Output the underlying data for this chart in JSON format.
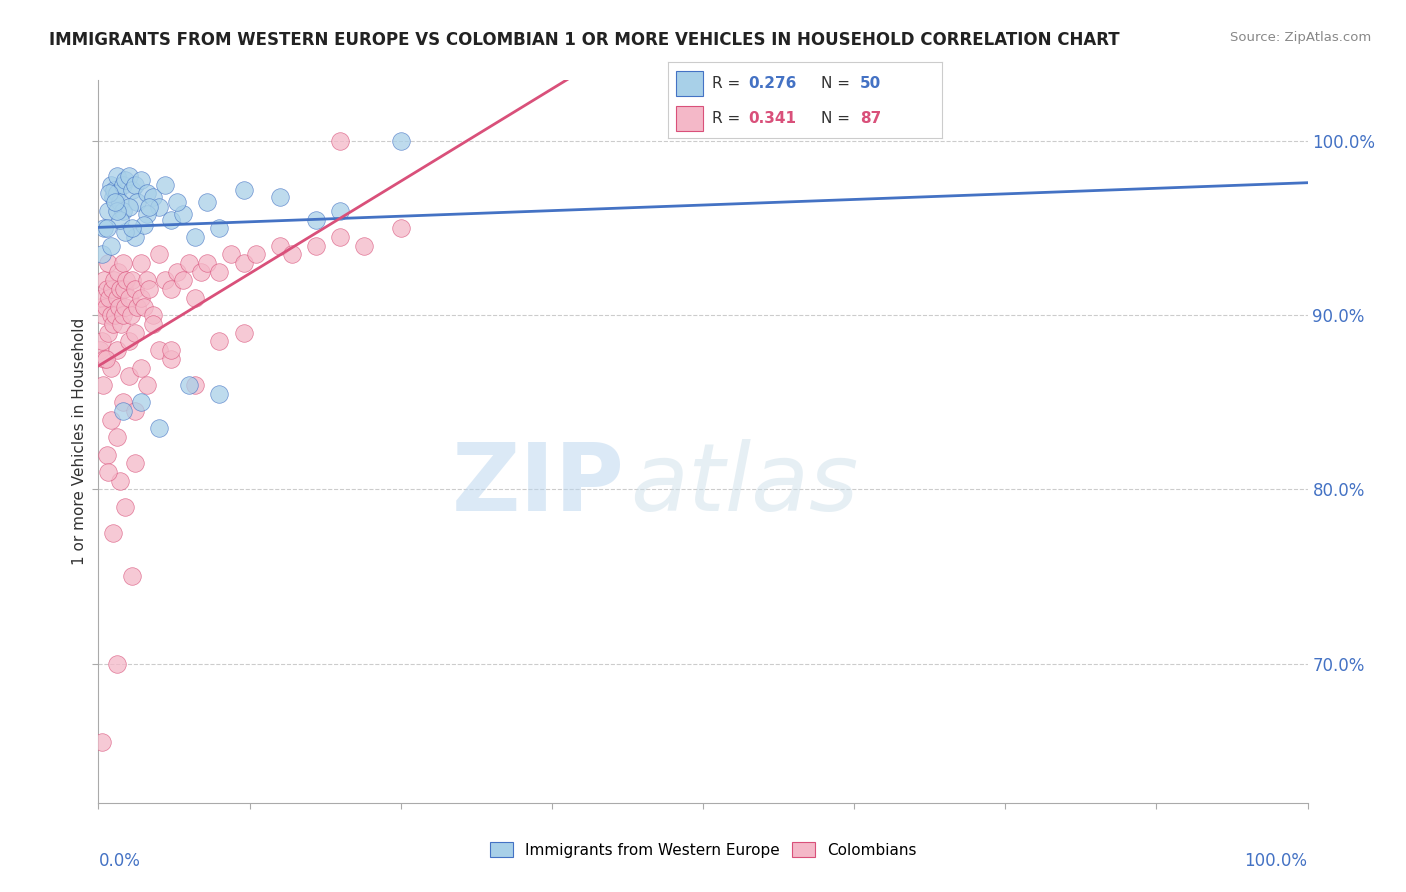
{
  "title": "IMMIGRANTS FROM WESTERN EUROPE VS COLOMBIAN 1 OR MORE VEHICLES IN HOUSEHOLD CORRELATION CHART",
  "source": "Source: ZipAtlas.com",
  "ylabel": "1 or more Vehicles in Household",
  "legend_label_blue": "Immigrants from Western Europe",
  "legend_label_pink": "Colombians",
  "R_blue": 0.276,
  "N_blue": 50,
  "R_pink": 0.341,
  "N_pink": 87,
  "color_blue": "#a8d0e8",
  "color_pink": "#f4b8c8",
  "line_color_blue": "#4472c4",
  "line_color_pink": "#d9507a",
  "watermark_zip": "ZIP",
  "watermark_atlas": "atlas",
  "blue_scatter_x": [
    0.3,
    0.5,
    0.8,
    1.0,
    1.2,
    1.3,
    1.5,
    1.5,
    1.8,
    2.0,
    2.0,
    2.2,
    2.5,
    2.8,
    3.0,
    3.2,
    3.5,
    4.0,
    4.5,
    5.0,
    5.5,
    6.0,
    7.0,
    8.0,
    9.0,
    10.0,
    12.0,
    15.0,
    18.0,
    20.0,
    3.0,
    2.5,
    1.0,
    4.0,
    6.5,
    3.8,
    2.2,
    1.8,
    0.7,
    1.5,
    2.0,
    3.5,
    5.0,
    7.5,
    10.0,
    25.0,
    0.9,
    1.4,
    2.8,
    4.2
  ],
  "blue_scatter_y": [
    93.5,
    95.0,
    96.0,
    97.5,
    96.8,
    97.2,
    97.0,
    98.0,
    96.5,
    97.5,
    96.0,
    97.8,
    98.0,
    97.2,
    97.5,
    96.5,
    97.8,
    97.0,
    96.8,
    96.2,
    97.5,
    95.5,
    95.8,
    94.5,
    96.5,
    95.0,
    97.2,
    96.8,
    95.5,
    96.0,
    94.5,
    96.2,
    94.0,
    95.8,
    96.5,
    95.2,
    94.8,
    95.5,
    95.0,
    96.0,
    84.5,
    85.0,
    83.5,
    86.0,
    85.5,
    100.0,
    97.0,
    96.5,
    95.0,
    96.2
  ],
  "pink_scatter_x": [
    0.1,
    0.2,
    0.3,
    0.3,
    0.4,
    0.5,
    0.5,
    0.6,
    0.7,
    0.8,
    0.8,
    0.9,
    1.0,
    1.0,
    1.1,
    1.2,
    1.3,
    1.4,
    1.5,
    1.5,
    1.6,
    1.7,
    1.8,
    1.9,
    2.0,
    2.0,
    2.1,
    2.2,
    2.3,
    2.5,
    2.5,
    2.7,
    2.8,
    3.0,
    3.0,
    3.2,
    3.5,
    3.5,
    3.8,
    4.0,
    4.2,
    4.5,
    5.0,
    5.5,
    6.0,
    6.5,
    7.0,
    7.5,
    8.0,
    8.5,
    9.0,
    10.0,
    11.0,
    12.0,
    13.0,
    15.0,
    16.0,
    18.0,
    20.0,
    22.0,
    25.0,
    0.4,
    0.6,
    1.0,
    1.5,
    2.0,
    2.5,
    3.0,
    3.5,
    4.0,
    5.0,
    6.0,
    8.0,
    10.0,
    12.0,
    3.0,
    1.8,
    2.2,
    0.7,
    1.2,
    4.5,
    6.0,
    2.8,
    1.5,
    20.0,
    0.3,
    0.8
  ],
  "pink_scatter_y": [
    88.0,
    90.5,
    91.0,
    88.5,
    90.0,
    92.0,
    87.5,
    90.5,
    91.5,
    89.0,
    93.0,
    91.0,
    90.0,
    87.0,
    91.5,
    89.5,
    92.0,
    90.0,
    91.0,
    88.0,
    92.5,
    90.5,
    91.5,
    89.5,
    93.0,
    90.0,
    91.5,
    90.5,
    92.0,
    91.0,
    88.5,
    90.0,
    92.0,
    91.5,
    89.0,
    90.5,
    93.0,
    91.0,
    90.5,
    92.0,
    91.5,
    90.0,
    93.5,
    92.0,
    91.5,
    92.5,
    92.0,
    93.0,
    91.0,
    92.5,
    93.0,
    92.5,
    93.5,
    93.0,
    93.5,
    94.0,
    93.5,
    94.0,
    94.5,
    94.0,
    95.0,
    86.0,
    87.5,
    84.0,
    83.0,
    85.0,
    86.5,
    84.5,
    87.0,
    86.0,
    88.0,
    87.5,
    86.0,
    88.5,
    89.0,
    81.5,
    80.5,
    79.0,
    82.0,
    77.5,
    89.5,
    88.0,
    75.0,
    70.0,
    100.0,
    65.5,
    81.0
  ],
  "xlim": [
    0.0,
    100.0
  ],
  "ylim": [
    62.0,
    103.5
  ],
  "ytick_positions": [
    70.0,
    80.0,
    90.0,
    100.0
  ],
  "ytick_labels": [
    "70.0%",
    "80.0%",
    "90.0%",
    "100.0%"
  ],
  "xtick_positions": [
    0,
    12.5,
    25,
    37.5,
    50,
    62.5,
    75,
    87.5,
    100
  ],
  "grid_color": "#cccccc",
  "bg_color": "#ffffff"
}
